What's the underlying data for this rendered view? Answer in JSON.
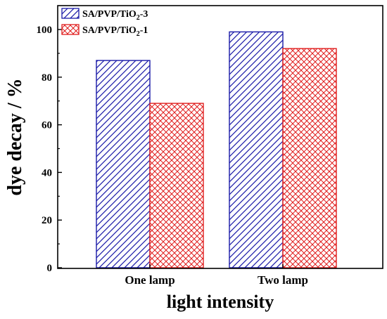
{
  "chart_data": {
    "type": "bar",
    "xlabel": "light intensity",
    "ylabel": "dye decay / %",
    "ylim": [
      0,
      100
    ],
    "yticks": [
      0,
      20,
      40,
      60,
      80,
      100
    ],
    "categories": [
      "One lamp",
      "Two lamp"
    ],
    "grid": false,
    "legend_placement": "top-left",
    "series": [
      {
        "name": "SA/PVP/TiO2-3",
        "legend_parts": [
          "SA/PVP/TiO",
          "2",
          "-3"
        ],
        "color": "#1a1aa8",
        "pattern": "diagonal-hatch",
        "values": [
          87,
          99
        ]
      },
      {
        "name": "SA/PVP/TiO2-1",
        "legend_parts": [
          "SA/PVP/TiO",
          "2",
          "-1"
        ],
        "color": "#e01e1e",
        "pattern": "crosshatch",
        "values": [
          69,
          92
        ]
      }
    ]
  }
}
